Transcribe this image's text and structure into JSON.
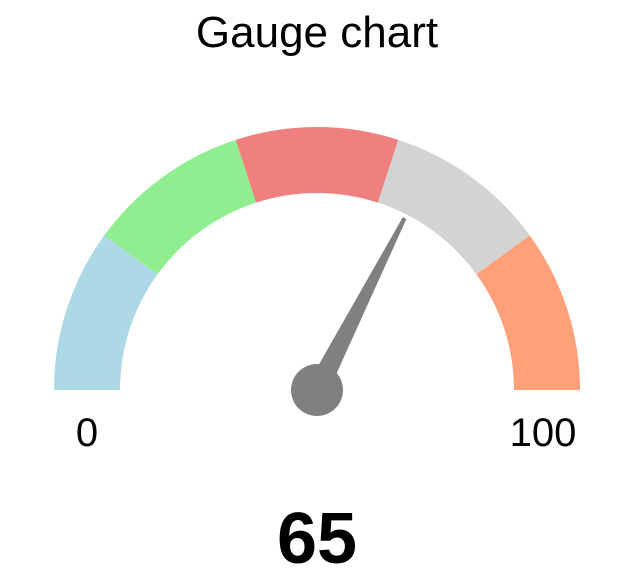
{
  "chart_data": {
    "type": "gauge",
    "title": "Gauge chart",
    "value": 65,
    "range": [
      0,
      100
    ],
    "min_label": "0",
    "max_label": "100",
    "value_label": "65",
    "bands": [
      {
        "from": 0,
        "to": 20,
        "color": "#ADD8E6"
      },
      {
        "from": 20,
        "to": 40,
        "color": "#90EE90"
      },
      {
        "from": 40,
        "to": 60,
        "color": "#F08080"
      },
      {
        "from": 60,
        "to": 80,
        "color": "#D3D3D3"
      },
      {
        "from": 80,
        "to": 100,
        "color": "#FFA07A"
      }
    ],
    "needle_color": "#808080"
  }
}
